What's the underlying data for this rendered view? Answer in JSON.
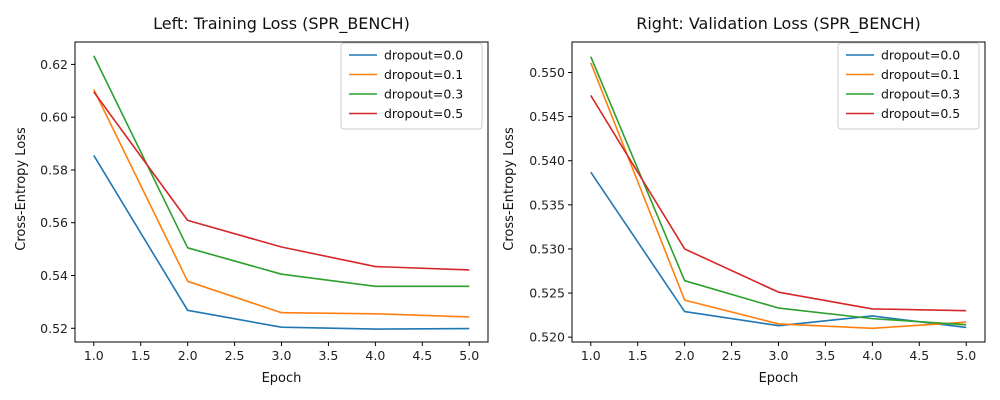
{
  "chart_data": [
    {
      "type": "line",
      "title": "Left: Training Loss (SPR_BENCH)",
      "xlabel": "Epoch",
      "ylabel": "Cross-Entropy Loss",
      "x": [
        1,
        2,
        3,
        4,
        5
      ],
      "xlim": [
        0.8,
        5.2
      ],
      "ylim": [
        0.5148,
        0.6285
      ],
      "xticks": [
        "1.0",
        "1.5",
        "2.0",
        "2.5",
        "3.0",
        "3.5",
        "4.0",
        "4.5",
        "5.0"
      ],
      "yticks": [
        "0.52",
        "0.54",
        "0.56",
        "0.58",
        "0.60",
        "0.62"
      ],
      "grid": false,
      "legend_position": "top-right",
      "series": [
        {
          "name": "dropout=0.0",
          "color": "#1f77b4",
          "values": [
            0.5855,
            0.5268,
            0.5204,
            0.5197,
            0.5199
          ]
        },
        {
          "name": "dropout=0.1",
          "color": "#ff7f0e",
          "values": [
            0.6105,
            0.5378,
            0.5259,
            0.5255,
            0.5243
          ]
        },
        {
          "name": "dropout=0.3",
          "color": "#2ca02c",
          "values": [
            0.6233,
            0.5505,
            0.5405,
            0.5359,
            0.5359
          ]
        },
        {
          "name": "dropout=0.5",
          "color": "#d62728",
          "values": [
            0.6096,
            0.5609,
            0.5508,
            0.5434,
            0.5421
          ]
        }
      ]
    },
    {
      "type": "line",
      "title": "Right: Validation Loss (SPR_BENCH)",
      "xlabel": "Epoch",
      "ylabel": "Cross-Entropy Loss",
      "x": [
        1,
        2,
        3,
        4,
        5
      ],
      "xlim": [
        0.8,
        5.2
      ],
      "ylim": [
        0.51945,
        0.55346
      ],
      "xticks": [
        "1.0",
        "1.5",
        "2.0",
        "2.5",
        "3.0",
        "3.5",
        "4.0",
        "4.5",
        "5.0"
      ],
      "yticks": [
        "0.520",
        "0.525",
        "0.530",
        "0.535",
        "0.540",
        "0.545",
        "0.550"
      ],
      "grid": false,
      "legend_position": "top-right",
      "series": [
        {
          "name": "dropout=0.0",
          "color": "#1f77b4",
          "values": [
            0.5387,
            0.5229,
            0.5213,
            0.5224,
            0.5211
          ]
        },
        {
          "name": "dropout=0.1",
          "color": "#ff7f0e",
          "values": [
            0.5511,
            0.5242,
            0.5215,
            0.521,
            0.5217
          ]
        },
        {
          "name": "dropout=0.3",
          "color": "#2ca02c",
          "values": [
            0.5518,
            0.5264,
            0.5233,
            0.5221,
            0.5214
          ]
        },
        {
          "name": "dropout=0.5",
          "color": "#d62728",
          "values": [
            0.5474,
            0.53,
            0.5251,
            0.5232,
            0.523
          ]
        }
      ]
    }
  ]
}
